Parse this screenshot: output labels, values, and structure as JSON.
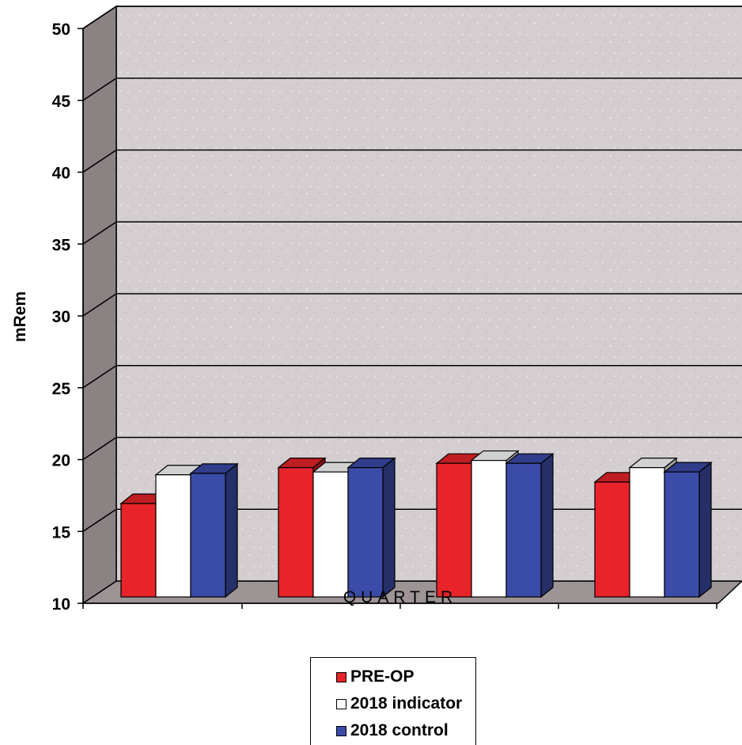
{
  "chart_data": {
    "type": "bar",
    "title": "",
    "xlabel": "QUARTER",
    "ylabel": "mRem",
    "ylim": [
      10,
      50
    ],
    "yticks": [
      10,
      15,
      20,
      25,
      30,
      35,
      40,
      45,
      50
    ],
    "categories": [
      "",
      "",
      "",
      ""
    ],
    "grid": true,
    "three_d": true,
    "legend_position": "bottom-center",
    "series": [
      {
        "name": "PRE-OP",
        "color": "#e8232a",
        "values": [
          16.5,
          19,
          19.3,
          18
        ]
      },
      {
        "name": "2018 indicator",
        "color": "#ffffff",
        "values": [
          18.5,
          18.7,
          19.5,
          19
        ]
      },
      {
        "name": "2018 control",
        "color": "#3b4ba8",
        "values": [
          18.6,
          19,
          19.3,
          18.7
        ]
      }
    ],
    "legend": [
      "PRE-OP",
      "2018 indicator",
      "2018 control"
    ]
  }
}
